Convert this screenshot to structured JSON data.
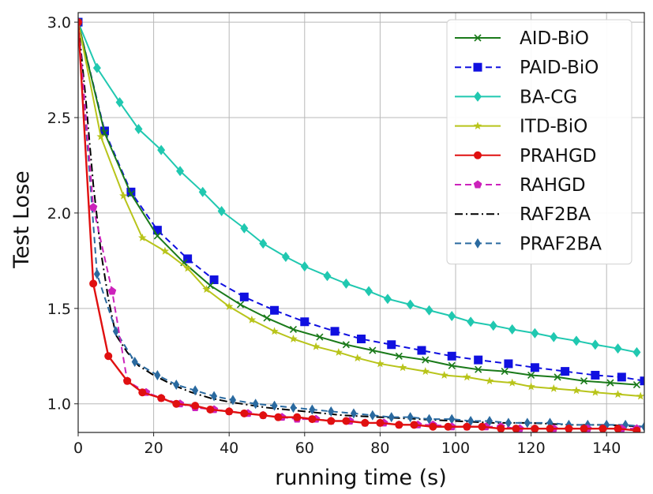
{
  "chart_data": {
    "type": "line",
    "title": "",
    "xlabel": "running time  (s)",
    "ylabel": "Test Lose",
    "xlim": [
      0,
      150
    ],
    "ylim": [
      0.85,
      3.05
    ],
    "xticks": [
      0,
      20,
      40,
      60,
      80,
      100,
      120,
      140
    ],
    "yticks": [
      1.0,
      1.5,
      2.0,
      2.5,
      3.0
    ],
    "xtick_labels": [
      "0",
      "20",
      "40",
      "60",
      "80",
      "100",
      "120",
      "140"
    ],
    "ytick_labels": [
      "1.0",
      "1.5",
      "2.0",
      "2.5",
      "3.0"
    ],
    "grid": true,
    "legend_position": "top-right",
    "series": [
      {
        "name": "AID-BiO",
        "color": "#1a7a1a",
        "dash": "solid",
        "marker": "x",
        "x": [
          0,
          7,
          14,
          21,
          28,
          35,
          43,
          50,
          57,
          64,
          71,
          78,
          85,
          92,
          99,
          106,
          113,
          120,
          127,
          134,
          141,
          148
        ],
        "y": [
          3.0,
          2.42,
          2.1,
          1.88,
          1.74,
          1.62,
          1.52,
          1.45,
          1.39,
          1.35,
          1.31,
          1.28,
          1.25,
          1.23,
          1.2,
          1.18,
          1.17,
          1.15,
          1.14,
          1.12,
          1.11,
          1.1
        ]
      },
      {
        "name": "PAID-BiO",
        "color": "#1010e0",
        "dash": "dashed",
        "marker": "square",
        "x": [
          0,
          7,
          14,
          21,
          29,
          36,
          44,
          52,
          60,
          68,
          75,
          83,
          91,
          99,
          106,
          114,
          121,
          129,
          137,
          144,
          150
        ],
        "y": [
          3.0,
          2.43,
          2.11,
          1.91,
          1.76,
          1.65,
          1.56,
          1.49,
          1.43,
          1.38,
          1.34,
          1.31,
          1.28,
          1.25,
          1.23,
          1.21,
          1.19,
          1.17,
          1.15,
          1.14,
          1.12
        ]
      },
      {
        "name": "BA-CG",
        "color": "#20c8b0",
        "dash": "solid",
        "marker": "diamond",
        "x": [
          0,
          5,
          11,
          16,
          22,
          27,
          33,
          38,
          44,
          49,
          55,
          60,
          66,
          71,
          77,
          82,
          88,
          93,
          99,
          104,
          110,
          115,
          121,
          126,
          132,
          137,
          143,
          148
        ],
        "y": [
          3.0,
          2.76,
          2.58,
          2.44,
          2.33,
          2.22,
          2.11,
          2.01,
          1.92,
          1.84,
          1.77,
          1.72,
          1.67,
          1.63,
          1.59,
          1.55,
          1.52,
          1.49,
          1.46,
          1.43,
          1.41,
          1.39,
          1.37,
          1.35,
          1.33,
          1.31,
          1.29,
          1.27
        ]
      },
      {
        "name": "ITD-BiO",
        "color": "#b8c41a",
        "dash": "solid",
        "marker": "star",
        "x": [
          0,
          6,
          12,
          17,
          23,
          29,
          34,
          40,
          46,
          52,
          57,
          63,
          69,
          74,
          80,
          86,
          92,
          97,
          103,
          109,
          115,
          120,
          126,
          132,
          137,
          143,
          149
        ],
        "y": [
          3.0,
          2.4,
          2.09,
          1.87,
          1.8,
          1.71,
          1.6,
          1.51,
          1.44,
          1.38,
          1.34,
          1.3,
          1.27,
          1.24,
          1.21,
          1.19,
          1.17,
          1.15,
          1.14,
          1.12,
          1.11,
          1.09,
          1.08,
          1.07,
          1.06,
          1.05,
          1.04
        ]
      },
      {
        "name": "PRAHGD",
        "color": "#e01010",
        "dash": "solid",
        "marker": "circle",
        "x": [
          0,
          4,
          8,
          13,
          17,
          22,
          26,
          31,
          35,
          40,
          44,
          49,
          53,
          58,
          62,
          67,
          71,
          76,
          80,
          85,
          89,
          94,
          98,
          103,
          107,
          112,
          116,
          121,
          125,
          130,
          134,
          139,
          143,
          148
        ],
        "y": [
          3.0,
          1.63,
          1.25,
          1.12,
          1.06,
          1.03,
          1.0,
          0.99,
          0.97,
          0.96,
          0.95,
          0.94,
          0.93,
          0.93,
          0.92,
          0.91,
          0.91,
          0.9,
          0.9,
          0.89,
          0.89,
          0.88,
          0.88,
          0.88,
          0.88,
          0.87,
          0.87,
          0.87,
          0.87,
          0.87,
          0.87,
          0.87,
          0.87,
          0.86
        ]
      },
      {
        "name": "RAHGD",
        "color": "#cc22bb",
        "dash": "dashed",
        "marker": "pentagon",
        "x": [
          0,
          4,
          9,
          13,
          18,
          22,
          27,
          31,
          36,
          40,
          45,
          49,
          54,
          58,
          63,
          67,
          72,
          76,
          81,
          85,
          90,
          94,
          99,
          103,
          108,
          112,
          117,
          121,
          126,
          130,
          135,
          139,
          144,
          148
        ],
        "y": [
          3.0,
          2.03,
          1.59,
          1.12,
          1.06,
          1.03,
          1.0,
          0.98,
          0.97,
          0.96,
          0.95,
          0.94,
          0.93,
          0.92,
          0.92,
          0.91,
          0.91,
          0.9,
          0.9,
          0.89,
          0.89,
          0.89,
          0.88,
          0.88,
          0.88,
          0.88,
          0.87,
          0.87,
          0.87,
          0.87,
          0.87,
          0.87,
          0.87,
          0.87
        ]
      },
      {
        "name": "RAF2BA",
        "color": "#000000",
        "dash": "dashdot",
        "marker": "none",
        "x": [
          0,
          2,
          4,
          6,
          8,
          10,
          13,
          16,
          20,
          25,
          30,
          35,
          40,
          50,
          60,
          70,
          80,
          90,
          100,
          110,
          120,
          130,
          140,
          150
        ],
        "y": [
          3.0,
          2.6,
          2.15,
          1.8,
          1.55,
          1.36,
          1.27,
          1.2,
          1.15,
          1.1,
          1.06,
          1.03,
          1.01,
          0.98,
          0.96,
          0.94,
          0.93,
          0.92,
          0.91,
          0.9,
          0.9,
          0.89,
          0.89,
          0.88
        ]
      },
      {
        "name": "PRAF2BA",
        "color": "#2a6aa0",
        "dash": "dashed",
        "marker": "thin_diamond",
        "x": [
          0,
          5,
          10,
          15,
          21,
          26,
          31,
          36,
          41,
          47,
          52,
          57,
          62,
          67,
          73,
          78,
          83,
          88,
          93,
          99,
          104,
          109,
          114,
          119,
          125,
          130,
          135,
          140,
          145,
          150
        ],
        "y": [
          3.0,
          1.68,
          1.38,
          1.22,
          1.15,
          1.1,
          1.07,
          1.04,
          1.02,
          1.0,
          0.99,
          0.98,
          0.97,
          0.96,
          0.95,
          0.94,
          0.93,
          0.93,
          0.92,
          0.92,
          0.91,
          0.91,
          0.9,
          0.9,
          0.9,
          0.89,
          0.89,
          0.89,
          0.89,
          0.88
        ]
      }
    ]
  }
}
